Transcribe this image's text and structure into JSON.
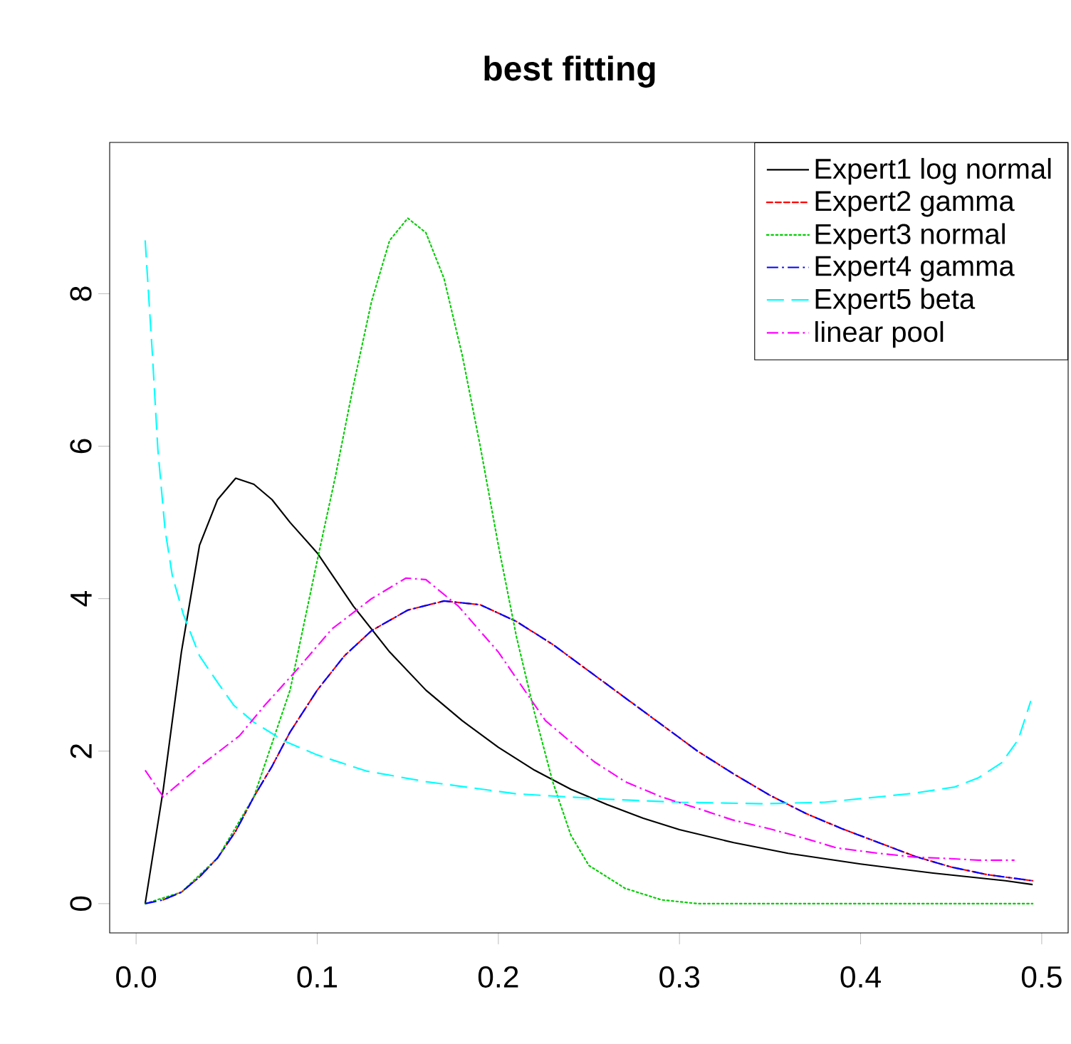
{
  "chart_data": {
    "type": "line",
    "title": "best fitting",
    "xlim": [
      -0.0146,
      0.5146
    ],
    "ylim": [
      -0.384,
      9.984
    ],
    "xticks": [
      {
        "value": 0,
        "label": "0.0"
      },
      0.1,
      0.2,
      0.3,
      0.4,
      0.5
    ],
    "yticks": [
      0,
      2,
      4,
      6,
      8
    ],
    "grid": false,
    "legend": "top right",
    "series": [
      {
        "name": "Expert1 log normal",
        "color": "#000000",
        "line_style": "solid",
        "x": [
          0.005,
          0.015,
          0.025,
          0.035,
          0.045,
          0.055,
          0.065,
          0.075,
          0.085,
          0.1,
          0.12,
          0.14,
          0.16,
          0.18,
          0.2,
          0.22,
          0.24,
          0.26,
          0.28,
          0.3,
          0.33,
          0.36,
          0.4,
          0.44,
          0.48,
          0.495
        ],
        "values": [
          0,
          1.5,
          3.3,
          4.7,
          5.3,
          5.58,
          5.5,
          5.3,
          5.0,
          4.6,
          3.9,
          3.3,
          2.8,
          2.4,
          2.05,
          1.75,
          1.5,
          1.3,
          1.12,
          0.97,
          0.8,
          0.66,
          0.52,
          0.4,
          0.3,
          0.25
        ]
      },
      {
        "name": "Expert2 gamma",
        "color": "#ff0000",
        "line_style": "dashed",
        "x": [
          0.015,
          0.025,
          0.035,
          0.045,
          0.055,
          0.065,
          0.075,
          0.085,
          0.1,
          0.115,
          0.13,
          0.15,
          0.17,
          0.19,
          0.21,
          0.23,
          0.25,
          0.27,
          0.29,
          0.31,
          0.33,
          0.35,
          0.37,
          0.39,
          0.41,
          0.43,
          0.45,
          0.47,
          0.495
        ],
        "values": [
          0.05,
          0.15,
          0.35,
          0.6,
          0.95,
          1.4,
          1.8,
          2.25,
          2.8,
          3.25,
          3.58,
          3.85,
          3.97,
          3.92,
          3.7,
          3.4,
          3.05,
          2.7,
          2.35,
          2.0,
          1.7,
          1.42,
          1.18,
          0.98,
          0.8,
          0.62,
          0.48,
          0.38,
          0.3
        ]
      },
      {
        "name": "Expert3 normal",
        "color": "#00cd00",
        "line_style": "dotted",
        "x": [
          0.005,
          0.025,
          0.045,
          0.065,
          0.085,
          0.1,
          0.11,
          0.12,
          0.13,
          0.14,
          0.15,
          0.16,
          0.17,
          0.18,
          0.19,
          0.2,
          0.21,
          0.22,
          0.23,
          0.24,
          0.25,
          0.27,
          0.29,
          0.31,
          0.4,
          0.495
        ],
        "values": [
          0,
          0.15,
          0.6,
          1.4,
          2.8,
          4.5,
          5.6,
          6.8,
          7.9,
          8.7,
          8.99,
          8.8,
          8.2,
          7.2,
          6.0,
          4.7,
          3.5,
          2.5,
          1.6,
          0.9,
          0.5,
          0.2,
          0.05,
          0,
          0,
          0
        ]
      },
      {
        "name": "Expert4 gamma",
        "color": "#0000ff",
        "line_style": "dashdot",
        "x": [
          0.005,
          0.015,
          0.025,
          0.035,
          0.045,
          0.055,
          0.065,
          0.075,
          0.085,
          0.1,
          0.115,
          0.13,
          0.15,
          0.17,
          0.19,
          0.21,
          0.23,
          0.25,
          0.27,
          0.29,
          0.31,
          0.33,
          0.35,
          0.37,
          0.39,
          0.41,
          0.43,
          0.45,
          0.47,
          0.495
        ],
        "values": [
          0,
          0.05,
          0.15,
          0.35,
          0.6,
          0.95,
          1.4,
          1.8,
          2.25,
          2.8,
          3.25,
          3.58,
          3.85,
          3.97,
          3.92,
          3.7,
          3.4,
          3.05,
          2.7,
          2.35,
          2.0,
          1.7,
          1.42,
          1.18,
          0.98,
          0.8,
          0.62,
          0.48,
          0.38,
          0.3
        ]
      },
      {
        "name": "Expert5 beta",
        "color": "#00ffff",
        "line_style": "longdash",
        "x": [
          0.005,
          0.009,
          0.012,
          0.016,
          0.02,
          0.026,
          0.035,
          0.045,
          0.054,
          0.065,
          0.082,
          0.1,
          0.127,
          0.16,
          0.21,
          0.26,
          0.3,
          0.347,
          0.38,
          0.41,
          0.43,
          0.452,
          0.465,
          0.478,
          0.487,
          0.494
        ],
        "values": [
          8.7,
          7.2,
          5.96,
          4.9,
          4.3,
          3.8,
          3.25,
          2.9,
          2.6,
          2.38,
          2.13,
          1.95,
          1.74,
          1.6,
          1.44,
          1.37,
          1.33,
          1.31,
          1.33,
          1.4,
          1.45,
          1.53,
          1.65,
          1.85,
          2.15,
          2.66
        ]
      },
      {
        "name": "linear pool",
        "color": "#ff00ff",
        "line_style": "dashdot",
        "x": [
          0.005,
          0.015,
          0.02,
          0.035,
          0.057,
          0.071,
          0.09,
          0.108,
          0.13,
          0.149,
          0.16,
          0.178,
          0.2,
          0.226,
          0.253,
          0.27,
          0.29,
          0.31,
          0.329,
          0.35,
          0.37,
          0.387,
          0.41,
          0.43,
          0.45,
          0.465,
          0.485
        ],
        "values": [
          1.75,
          1.4,
          1.5,
          1.8,
          2.2,
          2.6,
          3.1,
          3.6,
          4.0,
          4.27,
          4.25,
          3.9,
          3.3,
          2.4,
          1.86,
          1.6,
          1.4,
          1.25,
          1.1,
          0.98,
          0.85,
          0.73,
          0.66,
          0.61,
          0.59,
          0.57,
          0.57
        ]
      }
    ]
  }
}
